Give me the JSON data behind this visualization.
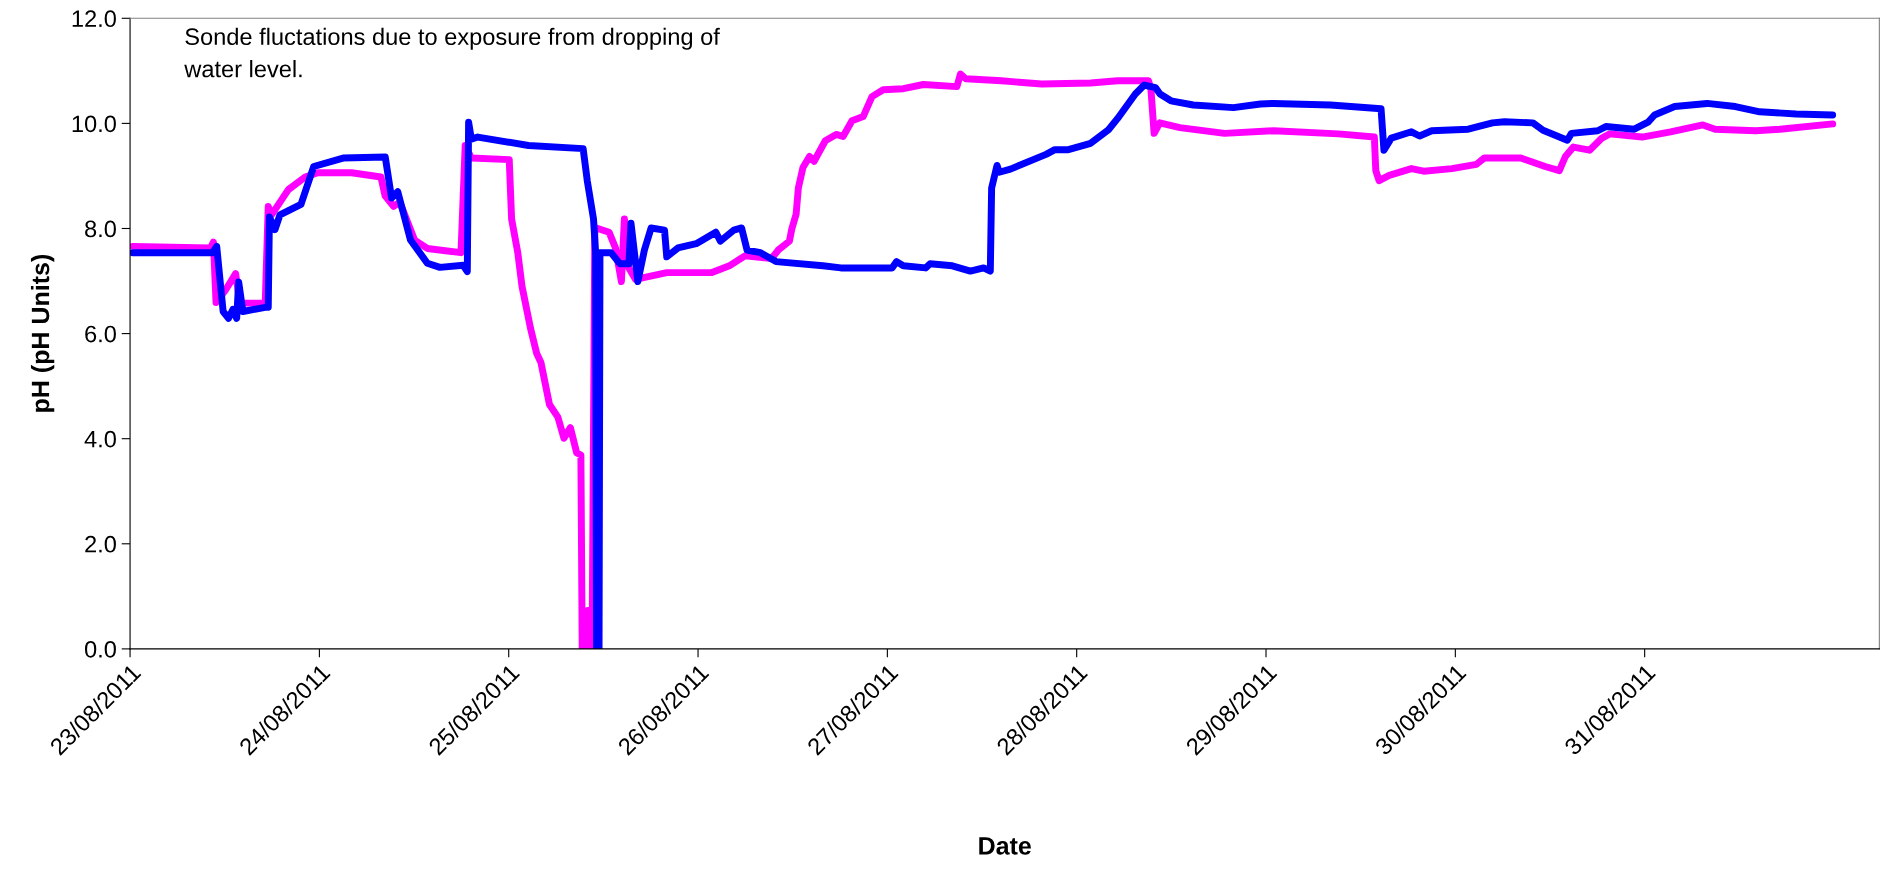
{
  "chart_data": {
    "type": "line",
    "xlabel": "Date",
    "ylabel": "pH (pH Units)",
    "annotations": [
      "Sonde fluctations due to exposure from dropping of\nwater level."
    ],
    "xlim": [
      "2011-08-23",
      "2011-09-01T05:45"
    ],
    "xticks": [
      {
        "value": "2011-08-23",
        "label": "23/08/2011"
      },
      {
        "value": "2011-08-24",
        "label": "24/08/2011"
      },
      {
        "value": "2011-08-25",
        "label": "25/08/2011"
      },
      {
        "value": "2011-08-26",
        "label": "26/08/2011"
      },
      {
        "value": "2011-08-27",
        "label": "27/08/2011"
      },
      {
        "value": "2011-08-28",
        "label": "28/08/2011"
      },
      {
        "value": "2011-08-29",
        "label": "29/08/2011"
      },
      {
        "value": "2011-08-30",
        "label": "30/08/2011"
      },
      {
        "value": "2011-08-31",
        "label": "31/08/2011"
      }
    ],
    "ylim": [
      0,
      12
    ],
    "yticks": [
      {
        "value": 0,
        "label": "0.0"
      },
      {
        "value": 2,
        "label": "2.0"
      },
      {
        "value": 4,
        "label": "4.0"
      },
      {
        "value": 6,
        "label": "6.0"
      },
      {
        "value": 8,
        "label": "8.0"
      },
      {
        "value": 10,
        "label": "10.0"
      },
      {
        "value": 12,
        "label": "12.0"
      }
    ],
    "grid": false,
    "marker": "none",
    "line_style": "solid",
    "series": [
      {
        "color": "#ff00ff",
        "x": [
          "2011-08-23T00:20",
          "2011-08-23T10:12",
          "2011-08-23T10:34",
          "2011-08-23T10:54",
          "2011-08-23T12:04",
          "2011-08-23T13:23",
          "2011-08-23T13:55",
          "2011-08-23T17:08",
          "2011-08-23T17:31",
          "2011-08-23T17:56",
          "2011-08-23T20:04",
          "2011-08-23T22:12",
          "2011-08-23T23:48",
          "2011-08-24T04:05",
          "2011-08-24T07:48",
          "2011-08-24T08:20",
          "2011-08-24T09:24",
          "2011-08-24T10:12",
          "2011-08-24T12:04",
          "2011-08-24T13:41",
          "2011-08-24T17:57",
          "2011-08-24T18:29",
          "2011-08-24T19:16",
          "2011-08-25T00:04",
          "2011-08-25T00:22",
          "2011-08-25T01:09",
          "2011-08-25T01:41",
          "2011-08-25T02:46",
          "2011-08-25T03:33",
          "2011-08-25T04:05",
          "2011-08-25T05:10",
          "2011-08-25T06:14",
          "2011-08-25T07:00",
          "2011-08-25T07:49",
          "2011-08-25T08:37",
          "2011-08-25T09:09",
          "2011-08-25T09:19",
          "2011-08-25T09:42",
          "2011-08-25T10:03",
          "2011-08-25T10:14",
          "2011-08-25T10:34",
          "2011-08-25T10:55",
          "2011-08-25T12:43",
          "2011-08-25T13:32",
          "2011-08-25T14:17",
          "2011-08-25T14:40",
          "2011-08-25T15:14",
          "2011-08-25T16:05",
          "2011-08-25T20:02",
          "2011-08-26T01:41",
          "2011-08-26T03:58",
          "2011-08-26T05:57",
          "2011-08-26T09:20",
          "2011-08-26T10:10",
          "2011-08-26T11:35",
          "2011-08-26T11:53",
          "2011-08-26T12:26",
          "2011-08-26T12:43",
          "2011-08-26T13:18",
          "2011-08-26T14:08",
          "2011-08-26T14:43",
          "2011-08-26T16:08",
          "2011-08-26T17:31",
          "2011-08-26T18:23",
          "2011-08-26T19:31",
          "2011-08-26T20:56",
          "2011-08-26T22:03",
          "2011-08-26T23:28",
          "2011-08-27T02:01",
          "2011-08-27T04:34",
          "2011-08-27T08:49",
          "2011-08-27T09:16",
          "2011-08-27T09:56",
          "2011-08-27T14:28",
          "2011-08-27T19:34",
          "2011-08-28T01:46",
          "2011-08-28T05:10",
          "2011-08-28T09:07",
          "2011-08-28T09:25",
          "2011-08-28T09:49",
          "2011-08-28T10:32",
          "2011-08-28T13:05",
          "2011-08-28T18:45",
          "2011-08-29T00:59",
          "2011-08-29T09:11",
          "2011-08-29T13:44",
          "2011-08-29T13:55",
          "2011-08-29T14:20",
          "2011-08-29T15:37",
          "2011-08-29T18:26",
          "2011-08-29T19:59",
          "2011-08-29T23:34",
          "2011-08-30T02:40",
          "2011-08-30T03:40",
          "2011-08-30T08:18",
          "2011-08-30T11:23",
          "2011-08-30T13:11",
          "2011-08-30T13:57",
          "2011-08-30T14:58",
          "2011-08-30T17:01",
          "2011-08-30T18:35",
          "2011-08-30T19:35",
          "2011-08-30T23:41",
          "2011-08-31T03:17",
          "2011-08-31T07:23",
          "2011-08-31T08:56",
          "2011-08-31T14:04",
          "2011-08-31T17:10",
          "2011-08-31T23:50"
        ],
        "values": [
          7.66,
          7.63,
          7.74,
          6.59,
          6.82,
          7.14,
          6.58,
          6.58,
          8.42,
          8.26,
          8.74,
          8.98,
          9.06,
          9.06,
          8.98,
          8.62,
          8.42,
          8.5,
          7.78,
          7.62,
          7.54,
          9.58,
          9.34,
          9.31,
          8.18,
          7.54,
          6.9,
          6.1,
          5.62,
          5.45,
          4.65,
          4.41,
          4.01,
          4.21,
          3.73,
          3.69,
          0.0,
          0.0,
          0.73,
          0.0,
          0.0,
          8.02,
          7.93,
          7.63,
          6.99,
          8.18,
          7.25,
          7.03,
          7.16,
          7.16,
          7.29,
          7.48,
          7.43,
          7.59,
          7.76,
          7.99,
          8.27,
          8.77,
          9.16,
          9.37,
          9.28,
          9.67,
          9.79,
          9.75,
          10.05,
          10.13,
          10.51,
          10.64,
          10.66,
          10.74,
          10.7,
          10.94,
          10.85,
          10.81,
          10.75,
          10.77,
          10.81,
          10.81,
          10.64,
          9.81,
          10.01,
          9.92,
          9.81,
          9.86,
          9.8,
          9.74,
          9.1,
          8.91,
          9.01,
          9.14,
          9.09,
          9.14,
          9.22,
          9.34,
          9.34,
          9.18,
          9.1,
          9.37,
          9.55,
          9.49,
          9.72,
          9.8,
          9.74,
          9.84,
          9.97,
          9.89,
          9.86,
          9.89,
          9.99
        ]
      },
      {
        "color": "#0000ff",
        "x": [
          "2011-08-23T00:20",
          "2011-08-23T10:28",
          "2011-08-23T10:59",
          "2011-08-23T11:48",
          "2011-08-23T12:29",
          "2011-08-23T13:02",
          "2011-08-23T13:31",
          "2011-08-23T13:46",
          "2011-08-23T14:18",
          "2011-08-23T17:08",
          "2011-08-23T17:31",
          "2011-08-23T17:40",
          "2011-08-23T18:22",
          "2011-08-23T19:00",
          "2011-08-23T21:40",
          "2011-08-23T23:17",
          "2011-08-24T03:00",
          "2011-08-24T08:21",
          "2011-08-24T09:09",
          "2011-08-24T09:56",
          "2011-08-24T11:33",
          "2011-08-24T13:41",
          "2011-08-24T15:17",
          "2011-08-24T18:13",
          "2011-08-24T18:45",
          "2011-08-24T18:55",
          "2011-08-24T19:16",
          "2011-08-24T20:05",
          "2011-08-25T02:30",
          "2011-08-25T09:26",
          "2011-08-25T09:58",
          "2011-08-25T10:45",
          "2011-08-25T11:01",
          "2011-08-25T11:08",
          "2011-08-25T11:27",
          "2011-08-25T11:34",
          "2011-08-25T12:58",
          "2011-08-25T14:05",
          "2011-08-25T15:14",
          "2011-08-25T15:30",
          "2011-08-25T16:22",
          "2011-08-25T17:12",
          "2011-08-25T18:03",
          "2011-08-25T19:45",
          "2011-08-25T20:02",
          "2011-08-25T21:27",
          "2011-08-25T23:46",
          "2011-08-26T02:15",
          "2011-08-26T02:50",
          "2011-08-26T04:32",
          "2011-08-26T05:31",
          "2011-08-26T06:13",
          "2011-08-26T07:55",
          "2011-08-26T09:53",
          "2011-08-26T15:50",
          "2011-08-26T18:06",
          "2011-08-27T00:36",
          "2011-08-27T01:10",
          "2011-08-27T02:01",
          "2011-08-27T04:51",
          "2011-08-27T05:25",
          "2011-08-27T08:14",
          "2011-08-27T10:31",
          "2011-08-27T12:12",
          "2011-08-27T13:03",
          "2011-08-27T13:13",
          "2011-08-27T13:54",
          "2011-08-27T14:11",
          "2011-08-27T15:36",
          "2011-08-27T20:07",
          "2011-08-27T21:14",
          "2011-08-27T22:57",
          "2011-08-28T01:46",
          "2011-08-28T04:02",
          "2011-08-28T05:10",
          "2011-08-28T07:26",
          "2011-08-28T08:34",
          "2011-08-28T09:59",
          "2011-08-28T10:34",
          "2011-08-28T11:57",
          "2011-08-28T14:47",
          "2011-08-28T19:52",
          "2011-08-28T23:17",
          "2011-08-29T00:59",
          "2011-08-29T08:11",
          "2011-08-29T14:35",
          "2011-08-29T14:57",
          "2011-08-29T15:53",
          "2011-08-29T18:26",
          "2011-08-29T19:28",
          "2011-08-29T21:00",
          "2011-08-30T01:38",
          "2011-08-30T04:42",
          "2011-08-30T06:14",
          "2011-08-30T09:50",
          "2011-08-30T11:07",
          "2011-08-30T14:12",
          "2011-08-30T14:43",
          "2011-08-30T18:03",
          "2011-08-30T19:05",
          "2011-08-30T22:41",
          "2011-08-31T00:29",
          "2011-08-31T01:15",
          "2011-08-31T03:48",
          "2011-08-31T07:55",
          "2011-08-31T11:30",
          "2011-08-31T14:35",
          "2011-08-31T19:12",
          "2011-08-31T23:50"
        ],
        "values": [
          7.54,
          7.54,
          7.66,
          6.42,
          6.29,
          6.46,
          6.29,
          6.98,
          6.42,
          6.5,
          6.5,
          8.22,
          7.98,
          8.26,
          8.46,
          9.18,
          9.34,
          9.36,
          8.58,
          8.7,
          7.78,
          7.34,
          7.26,
          7.3,
          7.18,
          10.02,
          9.7,
          9.74,
          9.58,
          9.52,
          8.9,
          8.18,
          7.54,
          0.0,
          0.0,
          7.54,
          7.54,
          7.33,
          7.33,
          8.1,
          6.99,
          7.59,
          8.01,
          7.97,
          7.46,
          7.63,
          7.71,
          7.93,
          7.76,
          7.97,
          8.01,
          7.59,
          7.54,
          7.37,
          7.29,
          7.25,
          7.25,
          7.37,
          7.29,
          7.25,
          7.33,
          7.29,
          7.19,
          7.25,
          7.19,
          8.77,
          9.2,
          9.07,
          9.13,
          9.41,
          9.5,
          9.5,
          9.62,
          9.88,
          10.09,
          10.56,
          10.73,
          10.68,
          10.56,
          10.43,
          10.35,
          10.3,
          10.37,
          10.38,
          10.35,
          10.28,
          9.49,
          9.72,
          9.84,
          9.76,
          9.86,
          9.89,
          10.01,
          10.03,
          10.01,
          9.87,
          9.68,
          9.81,
          9.86,
          9.94,
          9.89,
          10.03,
          10.16,
          10.32,
          10.38,
          10.32,
          10.22,
          10.18,
          10.16
        ]
      }
    ]
  }
}
